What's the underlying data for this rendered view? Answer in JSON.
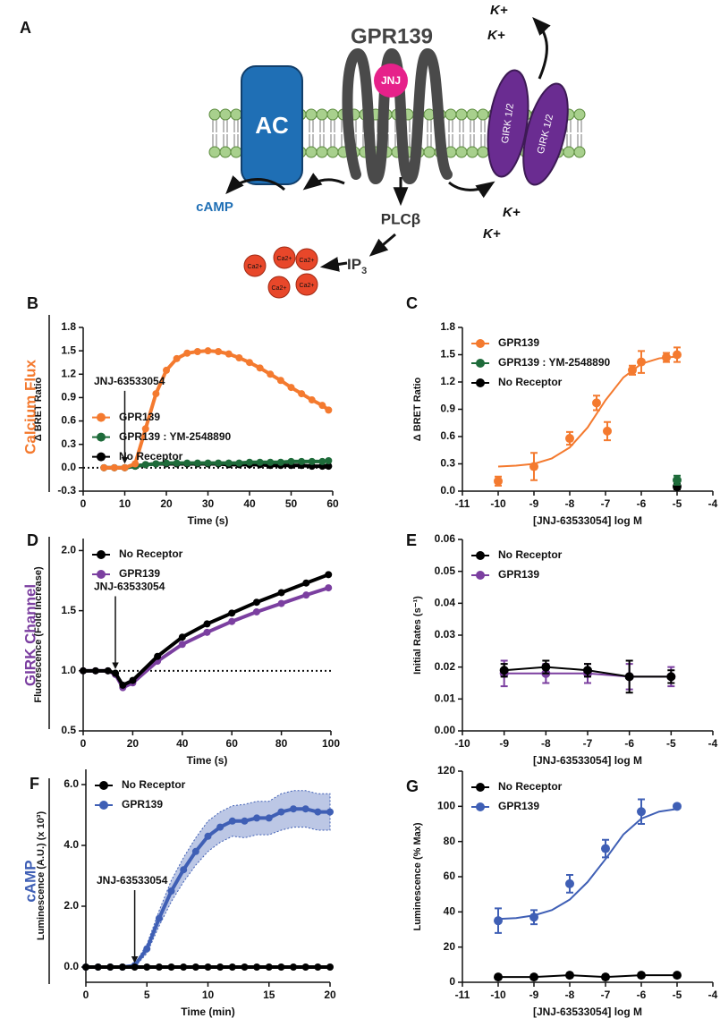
{
  "diagram": {
    "panel": "A",
    "receptor": "GPR139",
    "ligand": "JNJ",
    "enzyme": "AC",
    "channels": [
      "GIRK 1/2",
      "GIRK 1/2"
    ],
    "ions": [
      "K+",
      "K+",
      "K+",
      "K+"
    ],
    "second_messenger": "cAMP",
    "effector": "PLCβ",
    "ip3": [
      "IP",
      "3"
    ],
    "calcium": [
      "Ca2+",
      "Ca2+",
      "Ca2+",
      "Ca2+",
      "Ca2+"
    ]
  },
  "sections": [
    {
      "text": "Calcium Flux",
      "color": "#f47a2f"
    },
    {
      "text": "GIRK Channel",
      "color": "#7b3fa0"
    },
    {
      "text": "cAMP",
      "color": "#3f5fb5"
    }
  ],
  "chart_data": [
    {
      "type": "line",
      "panel": "B",
      "xlabel": "Time (s)",
      "ylabel": "Δ BRET Ratio",
      "xlim": [
        0,
        60
      ],
      "xticks": [
        0,
        10,
        20,
        30,
        40,
        50,
        60
      ],
      "ylim": [
        -0.3,
        1.8
      ],
      "yticks": [
        -0.3,
        {
          "value": 0,
          "label": "0.0"
        },
        0.3,
        0.6,
        0.9,
        1.2,
        1.5,
        1.8
      ],
      "baseline": 0,
      "annotation": {
        "text": "JNJ-63533054",
        "x": 10
      },
      "legend": "center left",
      "x": [
        5,
        7.5,
        10,
        12.5,
        15,
        17.5,
        20,
        22.5,
        25,
        27.5,
        30,
        32.5,
        35,
        37.5,
        40,
        42.5,
        45,
        47.5,
        50,
        52.5,
        55,
        57.5,
        59
      ],
      "series": [
        {
          "name": "GPR139",
          "color": "#f47a2f",
          "values": [
            0,
            0,
            0,
            0.05,
            0.5,
            0.95,
            1.25,
            1.4,
            1.47,
            1.49,
            1.5,
            1.49,
            1.46,
            1.41,
            1.35,
            1.28,
            1.2,
            1.12,
            1.03,
            0.95,
            0.87,
            0.8,
            0.74
          ]
        },
        {
          "name": "GPR139 : YM-2548890",
          "color": "#1e6b3a",
          "values": [
            0,
            0,
            0,
            0.02,
            0.04,
            0.05,
            0.06,
            0.06,
            0.06,
            0.06,
            0.06,
            0.06,
            0.06,
            0.06,
            0.07,
            0.07,
            0.07,
            0.07,
            0.08,
            0.08,
            0.08,
            0.08,
            0.09
          ]
        },
        {
          "name": "No Receptor",
          "color": "#000000",
          "values": [
            0,
            0,
            0,
            0.02,
            0.04,
            0.05,
            0.05,
            0.05,
            0.05,
            0.05,
            0.05,
            0.05,
            0.04,
            0.04,
            0.04,
            0.04,
            0.03,
            0.03,
            0.03,
            0.03,
            0.02,
            0.02,
            0.02
          ]
        }
      ]
    },
    {
      "type": "scatter",
      "panel": "C",
      "xlabel": "[JNJ-63533054] log M",
      "ylabel": "Δ BRET Ratio",
      "xlim": [
        -11,
        -4
      ],
      "xticks": [
        -11,
        -10,
        -9,
        -8,
        -7,
        -6,
        -5,
        -4
      ],
      "ylim": [
        0,
        1.8
      ],
      "yticks": [
        {
          "value": 0,
          "label": "0.0"
        },
        0.3,
        0.6,
        0.9,
        1.2,
        1.5,
        1.8
      ],
      "legend": "upper left",
      "series": [
        {
          "name": "GPR139",
          "color": "#f47a2f",
          "x": [
            -10,
            -9,
            -8,
            -7.25,
            -6.95,
            -6.25,
            -6,
            -5.3,
            -5
          ],
          "values": [
            0.11,
            0.27,
            0.58,
            0.97,
            0.66,
            1.33,
            1.42,
            1.47,
            1.5
          ],
          "errors": [
            0.05,
            0.15,
            0.07,
            0.08,
            0.1,
            0.05,
            0.12,
            0.05,
            0.08
          ],
          "fit": {
            "x": [
              -10,
              -9.5,
              -9,
              -8.5,
              -8,
              -7.5,
              -7,
              -6.5,
              -6,
              -5.5,
              -5
            ],
            "y": [
              0.27,
              0.28,
              0.3,
              0.36,
              0.48,
              0.7,
              1.0,
              1.25,
              1.4,
              1.46,
              1.48
            ]
          }
        },
        {
          "name": "GPR139 : YM-2548890",
          "color": "#1e6b3a",
          "x": [
            -5
          ],
          "values": [
            0.12
          ],
          "errors": [
            0.05
          ]
        },
        {
          "name": "No Receptor",
          "color": "#000000",
          "x": [
            -5
          ],
          "values": [
            0.05
          ],
          "errors": [
            0.03
          ]
        }
      ]
    },
    {
      "type": "line",
      "panel": "D",
      "xlabel": "Time (s)",
      "ylabel": "Fluorescence (Fold Increase)",
      "xlim": [
        0,
        100
      ],
      "xticks": [
        0,
        20,
        40,
        60,
        80,
        100
      ],
      "ylim": [
        0.5,
        2.1
      ],
      "yticks": [
        0.5,
        {
          "value": 1,
          "label": "1.0"
        },
        1.5,
        {
          "value": 2,
          "label": "2.0"
        }
      ],
      "baseline": 1,
      "annotation": {
        "text": "JNJ-63533054",
        "x": 13
      },
      "legend": "upper left",
      "x": [
        0,
        5,
        10,
        13,
        16,
        20,
        30,
        40,
        50,
        60,
        70,
        80,
        90,
        99
      ],
      "series": [
        {
          "name": "No Receptor",
          "color": "#000000",
          "values": [
            1.0,
            1.0,
            1.0,
            0.98,
            0.88,
            0.92,
            1.12,
            1.28,
            1.39,
            1.48,
            1.57,
            1.65,
            1.73,
            1.8
          ]
        },
        {
          "name": "GPR139",
          "color": "#7b3fa0",
          "values": [
            1.0,
            1.0,
            1.0,
            0.97,
            0.86,
            0.9,
            1.08,
            1.22,
            1.32,
            1.41,
            1.49,
            1.56,
            1.63,
            1.69
          ]
        }
      ]
    },
    {
      "type": "scatter",
      "panel": "E",
      "xlabel": "[JNJ-63533054] log M",
      "ylabel": "Initial Rates (s⁻¹)",
      "xlim": [
        -10,
        -4
      ],
      "xticks": [
        -10,
        -9,
        -8,
        -7,
        -6,
        -5,
        -4
      ],
      "ylim": [
        0,
        0.06
      ],
      "yticks": [
        {
          "value": 0,
          "label": "0.00"
        },
        {
          "value": 0.01,
          "label": "0.01"
        },
        {
          "value": 0.02,
          "label": "0.02"
        },
        {
          "value": 0.03,
          "label": "0.03"
        },
        {
          "value": 0.04,
          "label": "0.04"
        },
        {
          "value": 0.05,
          "label": "0.05"
        },
        {
          "value": 0.06,
          "label": "0.06"
        }
      ],
      "legend": "upper left",
      "series": [
        {
          "name": "No Receptor",
          "color": "#000000",
          "connect": true,
          "x": [
            -9,
            -8,
            -7,
            -6,
            -5
          ],
          "values": [
            0.019,
            0.02,
            0.019,
            0.017,
            0.017
          ],
          "errors": [
            0.002,
            0.002,
            0.002,
            0.005,
            0.002
          ]
        },
        {
          "name": "GPR139",
          "color": "#7b3fa0",
          "connect": true,
          "x": [
            -9,
            -8,
            -7,
            -6,
            -5
          ],
          "values": [
            0.018,
            0.018,
            0.018,
            0.017,
            0.017
          ],
          "errors": [
            0.004,
            0.003,
            0.003,
            0.004,
            0.003
          ]
        }
      ]
    },
    {
      "type": "line",
      "panel": "F",
      "xlabel": "Time (min)",
      "ylabel": "Luminescence (A.U.) (x 10³)",
      "xlim": [
        0,
        20
      ],
      "xticks": [
        0,
        5,
        10,
        15,
        20
      ],
      "ylim": [
        -0.5,
        6.5
      ],
      "yticks": [
        {
          "value": 0,
          "label": "0.0"
        },
        {
          "value": 2,
          "label": "2.0"
        },
        {
          "value": 4,
          "label": "4.0"
        },
        {
          "value": 6,
          "label": "6.0"
        }
      ],
      "error_band": true,
      "annotation": {
        "text": "JNJ-63533054",
        "x": 4
      },
      "legend": "upper left",
      "x": [
        0,
        1,
        2,
        3,
        4,
        5,
        6,
        7,
        8,
        9,
        10,
        11,
        12,
        13,
        14,
        15,
        16,
        17,
        18,
        19,
        20
      ],
      "series": [
        {
          "name": "No Receptor",
          "color": "#000000",
          "values": [
            0,
            0,
            0,
            0,
            0,
            0,
            0,
            0,
            0,
            0,
            0,
            0,
            0,
            0,
            0,
            0,
            0,
            0,
            0,
            0,
            0
          ]
        },
        {
          "name": "GPR139",
          "color": "#3f5fb5",
          "values": [
            0,
            0,
            0,
            0,
            0.05,
            0.6,
            1.6,
            2.5,
            3.2,
            3.8,
            4.3,
            4.6,
            4.8,
            4.8,
            4.9,
            4.9,
            5.1,
            5.2,
            5.2,
            5.1,
            5.1
          ],
          "errors": [
            0,
            0,
            0,
            0,
            0.05,
            0.15,
            0.25,
            0.35,
            0.4,
            0.45,
            0.5,
            0.5,
            0.5,
            0.55,
            0.55,
            0.55,
            0.6,
            0.6,
            0.6,
            0.6,
            0.6
          ]
        }
      ]
    },
    {
      "type": "scatter",
      "panel": "G",
      "xlabel": "[JNJ-63533054] log M",
      "ylabel": "Luminescence (% Max)",
      "xlim": [
        -11,
        -4
      ],
      "xticks": [
        -11,
        -10,
        -9,
        -8,
        -7,
        -6,
        -5,
        -4
      ],
      "ylim": [
        0,
        120
      ],
      "yticks": [
        0,
        20,
        40,
        60,
        80,
        100,
        120
      ],
      "legend": "upper left",
      "series": [
        {
          "name": "No Receptor",
          "color": "#000000",
          "connect": true,
          "x": [
            -10,
            -9,
            -8,
            -7,
            -6,
            -5
          ],
          "values": [
            3,
            3,
            4,
            3,
            4,
            4
          ],
          "errors": [
            1,
            1,
            1,
            1,
            1,
            1
          ]
        },
        {
          "name": "GPR139",
          "color": "#3f5fb5",
          "x": [
            -10,
            -9,
            -8,
            -7,
            -6,
            -5
          ],
          "values": [
            35,
            37,
            56,
            76,
            97,
            100
          ],
          "errors": [
            7,
            4,
            5,
            5,
            7,
            1
          ],
          "fit": {
            "x": [
              -10,
              -9.5,
              -9,
              -8.5,
              -8,
              -7.5,
              -7,
              -6.5,
              -6,
              -5.5,
              -5
            ],
            "y": [
              36,
              36.5,
              38,
              41,
              47,
              57,
              70,
              84,
              93,
              97,
              98.5
            ]
          }
        }
      ]
    }
  ]
}
